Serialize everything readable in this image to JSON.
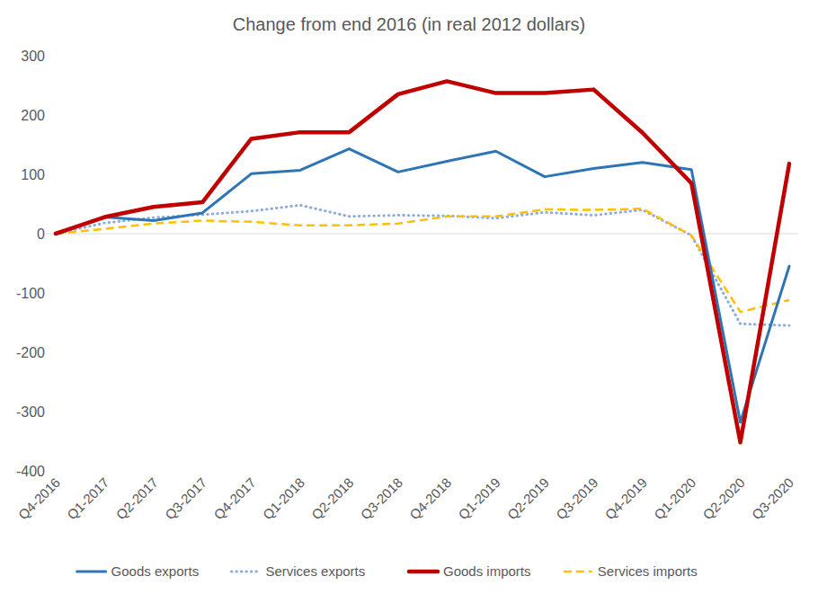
{
  "chart_data": {
    "type": "line",
    "title": "Change from end 2016 (in real 2012 dollars)",
    "categories": [
      "Q4-2016",
      "Q1-2017",
      "Q2-2017",
      "Q3-2017",
      "Q4-2017",
      "Q1-2018",
      "Q2-2018",
      "Q3-2018",
      "Q4-2018",
      "Q1-2019",
      "Q2-2019",
      "Q3-2019",
      "Q4-2019",
      "Q1-2020",
      "Q2-2020",
      "Q3-2020"
    ],
    "series": [
      {
        "name": "Goods exports",
        "color": "#2e75b6",
        "line_style": "solid",
        "values": [
          0,
          28,
          22,
          35,
          101,
          107,
          143,
          104,
          122,
          139,
          96,
          110,
          120,
          108,
          -318,
          -55
        ]
      },
      {
        "name": "Services exports",
        "color": "#8faadc",
        "line_style": "dotted",
        "values": [
          0,
          18,
          27,
          32,
          38,
          48,
          29,
          31,
          30,
          26,
          36,
          31,
          40,
          -3,
          -152,
          -155
        ]
      },
      {
        "name": "Goods imports",
        "color": "#c00000",
        "line_style": "solid",
        "values": [
          0,
          28,
          45,
          53,
          160,
          171,
          171,
          235,
          257,
          237,
          237,
          243,
          170,
          85,
          -352,
          118
        ]
      },
      {
        "name": "Services imports",
        "color": "#ffc000",
        "line_style": "dashed",
        "values": [
          0,
          8,
          17,
          22,
          20,
          14,
          14,
          17,
          29,
          29,
          41,
          40,
          42,
          -3,
          -132,
          -112
        ]
      }
    ],
    "ylim": [
      -400,
      300
    ],
    "yticks": [
      -400,
      -300,
      -200,
      -100,
      0,
      100,
      200,
      300
    ],
    "grid": false,
    "legend": "bottom"
  }
}
